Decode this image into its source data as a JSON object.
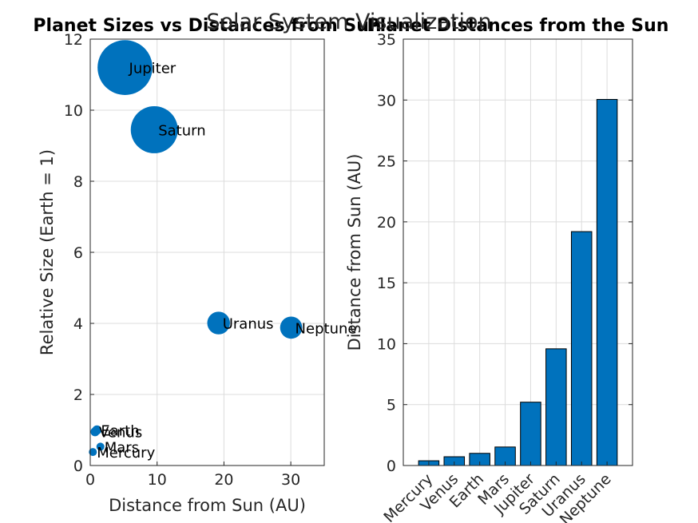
{
  "figure": {
    "suptitle": "Solar System Visualization"
  },
  "colors": {
    "series": "#0072BD",
    "bar_edge": "#000000",
    "axis": "#262626",
    "grid": "#dcdcdc"
  },
  "chart_data": [
    {
      "type": "scatter",
      "title": "Planet Sizes vs Distances from Sun",
      "xlabel": "Distance from Sun (AU)",
      "ylabel": "Relative Size (Earth = 1)",
      "xlim": [
        0,
        35
      ],
      "ylim": [
        0,
        12
      ],
      "xticks": [
        0,
        10,
        20,
        30
      ],
      "yticks": [
        0,
        2,
        4,
        6,
        8,
        10,
        12
      ],
      "grid": true,
      "marker_size_encodes": "relative size",
      "points": [
        {
          "label": "Mercury",
          "x": 0.39,
          "y": 0.38
        },
        {
          "label": "Venus",
          "x": 0.72,
          "y": 0.95
        },
        {
          "label": "Earth",
          "x": 1.0,
          "y": 1.0
        },
        {
          "label": "Mars",
          "x": 1.52,
          "y": 0.53
        },
        {
          "label": "Jupiter",
          "x": 5.2,
          "y": 11.2
        },
        {
          "label": "Saturn",
          "x": 9.58,
          "y": 9.45
        },
        {
          "label": "Uranus",
          "x": 19.2,
          "y": 4.01
        },
        {
          "label": "Neptune",
          "x": 30.05,
          "y": 3.88
        }
      ]
    },
    {
      "type": "bar",
      "title": "Planet Distances from the Sun",
      "xlabel": "",
      "ylabel": "Distance from Sun (AU)",
      "ylim": [
        0,
        35
      ],
      "yticks": [
        0,
        5,
        10,
        15,
        20,
        25,
        30,
        35
      ],
      "grid": true,
      "categories": [
        "Mercury",
        "Venus",
        "Earth",
        "Mars",
        "Jupiter",
        "Saturn",
        "Uranus",
        "Neptune"
      ],
      "values": [
        0.39,
        0.72,
        1.0,
        1.52,
        5.2,
        9.58,
        19.2,
        30.05
      ]
    }
  ]
}
